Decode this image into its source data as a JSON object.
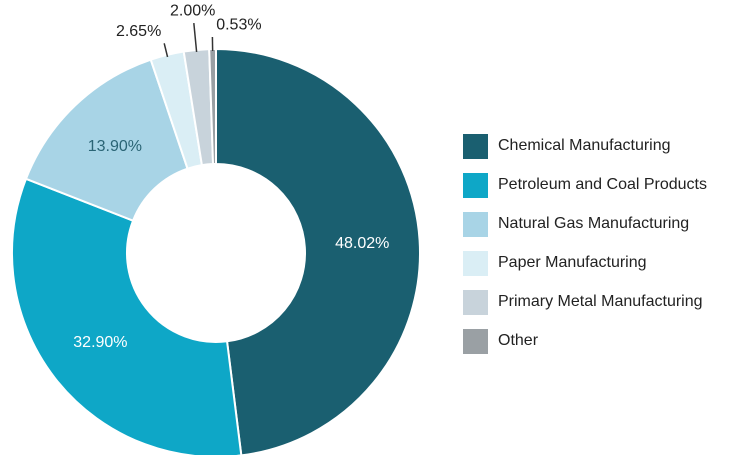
{
  "chart_data": {
    "type": "donut",
    "categories": [
      "Chemical Manufacturing",
      "Petroleum and Coal Products",
      "Natural Gas Manufacturing",
      "Paper Manufacturing",
      "Primary Metal Manufacturing",
      "Other"
    ],
    "values": [
      48.02,
      32.9,
      13.9,
      2.65,
      2.0,
      0.53
    ],
    "value_labels": [
      "48.02%",
      "32.90%",
      "13.90%",
      "2.65%",
      "2.00%",
      "0.53%"
    ],
    "colors": [
      "#1a5f70",
      "#0ea7c7",
      "#a8d4e6",
      "#daeef5",
      "#c8d3db",
      "#9aa0a4"
    ],
    "legend": "right"
  }
}
